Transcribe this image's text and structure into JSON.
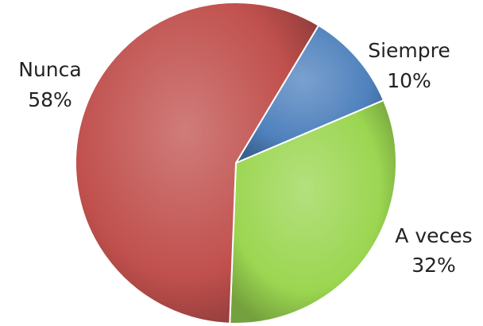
{
  "chart_data": {
    "type": "pie",
    "title": "",
    "legend": "none",
    "slices": [
      {
        "label": "Siempre",
        "value": 10,
        "value_label": "10%",
        "color": "#4f81bd"
      },
      {
        "label": "A veces",
        "value": 32,
        "value_label": "32%",
        "color": "#9bd651"
      },
      {
        "label": "Nunca",
        "value": 58,
        "value_label": "58%",
        "color": "#c0504d"
      }
    ],
    "start_angle_deg": -59,
    "direction": "clockwise",
    "style": "3d-shaded"
  }
}
